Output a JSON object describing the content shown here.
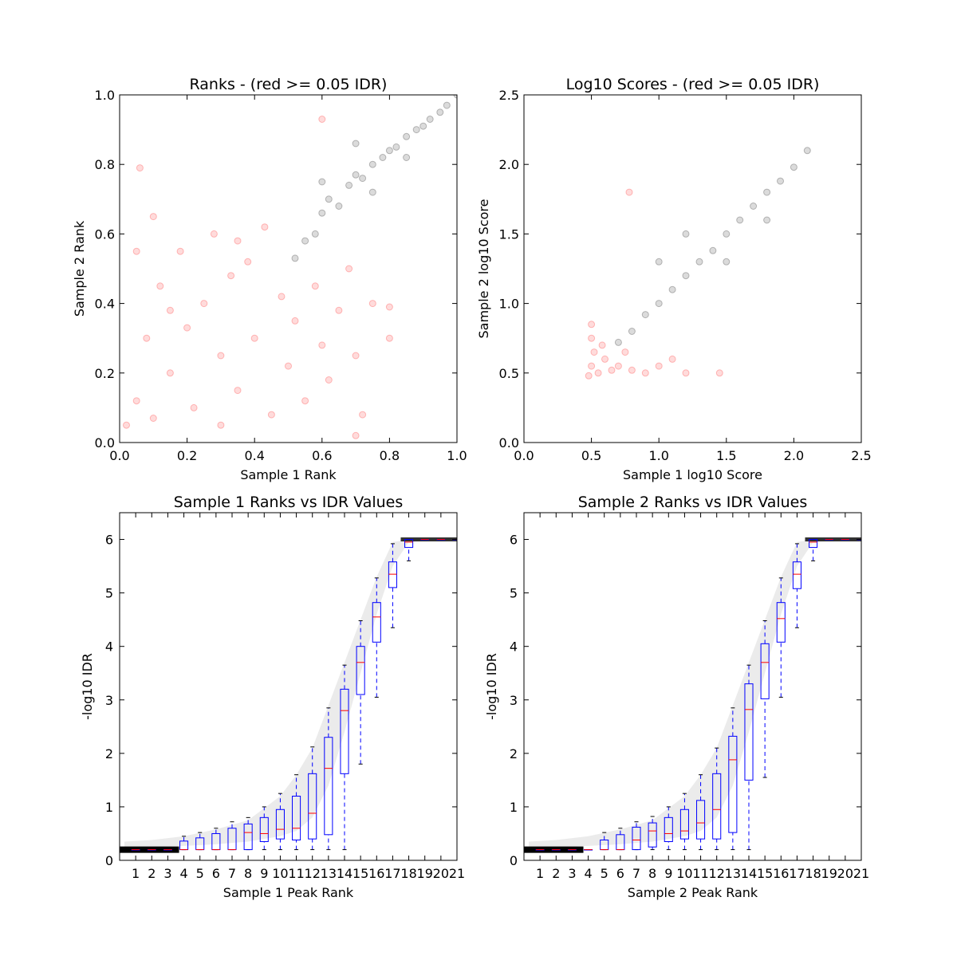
{
  "figure": {
    "background": "#ffffff",
    "colors": {
      "idr_fail": "#ff0000",
      "idr_pass": "#000000",
      "box": "#0000ff",
      "median": "#ff0000"
    }
  },
  "chart_data": [
    {
      "type": "scatter",
      "title": "Ranks - (red >= 0.05 IDR)",
      "xlabel": "Sample 1 Rank",
      "ylabel": "Sample 2 Rank",
      "xlim": [
        0.0,
        1.0
      ],
      "ylim": [
        0.0,
        1.0
      ],
      "xticks": [
        "0.0",
        "0.2",
        "0.4",
        "0.6",
        "0.8",
        "1.0"
      ],
      "yticks": [
        "0.0",
        "0.2",
        "0.4",
        "0.6",
        "0.8",
        "1.0"
      ],
      "series": [
        {
          "name": "IDR >= 0.05",
          "color": "#ff0000",
          "points": [
            [
              0.02,
              0.05
            ],
            [
              0.05,
              0.12
            ],
            [
              0.08,
              0.3
            ],
            [
              0.1,
              0.07
            ],
            [
              0.12,
              0.45
            ],
            [
              0.15,
              0.2
            ],
            [
              0.18,
              0.55
            ],
            [
              0.2,
              0.33
            ],
            [
              0.22,
              0.1
            ],
            [
              0.25,
              0.4
            ],
            [
              0.28,
              0.6
            ],
            [
              0.3,
              0.25
            ],
            [
              0.33,
              0.48
            ],
            [
              0.35,
              0.15
            ],
            [
              0.38,
              0.52
            ],
            [
              0.4,
              0.3
            ],
            [
              0.43,
              0.62
            ],
            [
              0.45,
              0.08
            ],
            [
              0.48,
              0.42
            ],
            [
              0.5,
              0.22
            ],
            [
              0.52,
              0.35
            ],
            [
              0.55,
              0.12
            ],
            [
              0.58,
              0.45
            ],
            [
              0.6,
              0.28
            ],
            [
              0.62,
              0.18
            ],
            [
              0.65,
              0.38
            ],
            [
              0.68,
              0.5
            ],
            [
              0.7,
              0.25
            ],
            [
              0.72,
              0.08
            ],
            [
              0.75,
              0.4
            ],
            [
              0.8,
              0.3
            ],
            [
              0.05,
              0.55
            ],
            [
              0.1,
              0.65
            ],
            [
              0.15,
              0.38
            ],
            [
              0.3,
              0.05
            ],
            [
              0.35,
              0.58
            ],
            [
              0.06,
              0.79
            ],
            [
              0.6,
              0.93
            ],
            [
              0.8,
              0.39
            ],
            [
              0.7,
              0.02
            ]
          ]
        },
        {
          "name": "IDR < 0.05",
          "color": "#000000",
          "points": [
            [
              0.52,
              0.53
            ],
            [
              0.55,
              0.58
            ],
            [
              0.58,
              0.6
            ],
            [
              0.6,
              0.66
            ],
            [
              0.62,
              0.7
            ],
            [
              0.65,
              0.68
            ],
            [
              0.68,
              0.74
            ],
            [
              0.7,
              0.77
            ],
            [
              0.72,
              0.76
            ],
            [
              0.75,
              0.8
            ],
            [
              0.78,
              0.82
            ],
            [
              0.8,
              0.84
            ],
            [
              0.82,
              0.85
            ],
            [
              0.85,
              0.88
            ],
            [
              0.88,
              0.9
            ],
            [
              0.9,
              0.91
            ],
            [
              0.92,
              0.93
            ],
            [
              0.95,
              0.95
            ],
            [
              0.97,
              0.97
            ],
            [
              1.0,
              1.0
            ],
            [
              0.6,
              0.75
            ],
            [
              0.7,
              0.86
            ],
            [
              0.75,
              0.72
            ],
            [
              0.85,
              0.82
            ]
          ]
        }
      ]
    },
    {
      "type": "scatter",
      "title": "Log10 Scores - (red >= 0.05 IDR)",
      "xlabel": "Sample 1 log10 Score",
      "ylabel": "Sample 2 log10 Score",
      "xlim": [
        0.0,
        2.5
      ],
      "ylim": [
        0.0,
        2.5
      ],
      "xticks": [
        "0.0",
        "0.5",
        "1.0",
        "1.5",
        "2.0",
        "2.5"
      ],
      "yticks": [
        "0.0",
        "0.5",
        "1.0",
        "1.5",
        "2.0",
        "2.5"
      ],
      "series": [
        {
          "name": "IDR >= 0.05",
          "color": "#ff0000",
          "points": [
            [
              0.48,
              0.48
            ],
            [
              0.5,
              0.55
            ],
            [
              0.55,
              0.5
            ],
            [
              0.52,
              0.65
            ],
            [
              0.6,
              0.6
            ],
            [
              0.65,
              0.52
            ],
            [
              0.5,
              0.75
            ],
            [
              0.7,
              0.55
            ],
            [
              0.58,
              0.7
            ],
            [
              0.8,
              0.52
            ],
            [
              0.9,
              0.5
            ],
            [
              0.5,
              0.85
            ],
            [
              0.75,
              0.65
            ],
            [
              1.0,
              0.55
            ],
            [
              1.1,
              0.6
            ],
            [
              1.2,
              0.5
            ],
            [
              0.78,
              1.8
            ],
            [
              1.45,
              0.5
            ]
          ]
        },
        {
          "name": "IDR < 0.05",
          "color": "#000000",
          "points": [
            [
              0.7,
              0.72
            ],
            [
              0.8,
              0.8
            ],
            [
              0.9,
              0.92
            ],
            [
              1.0,
              1.0
            ],
            [
              1.1,
              1.1
            ],
            [
              1.2,
              1.2
            ],
            [
              1.3,
              1.3
            ],
            [
              1.4,
              1.38
            ],
            [
              1.5,
              1.5
            ],
            [
              1.6,
              1.6
            ],
            [
              1.7,
              1.7
            ],
            [
              1.8,
              1.8
            ],
            [
              1.9,
              1.88
            ],
            [
              2.0,
              1.98
            ],
            [
              2.1,
              2.1
            ],
            [
              1.0,
              1.3
            ],
            [
              1.2,
              1.5
            ],
            [
              1.5,
              1.3
            ],
            [
              1.8,
              1.6
            ]
          ]
        }
      ]
    },
    {
      "type": "box",
      "title": "Sample 1 Ranks vs IDR Values",
      "xlabel": "Sample 1 Peak Rank",
      "ylabel": "-log10 IDR",
      "xlim": [
        0,
        21
      ],
      "ylim": [
        0,
        6.5
      ],
      "xticks": [
        "1",
        "2",
        "3",
        "4",
        "5",
        "6",
        "7",
        "8",
        "9",
        "10",
        "11",
        "12",
        "13",
        "14",
        "15",
        "16",
        "17",
        "18",
        "19",
        "20",
        "21"
      ],
      "yticks": [
        "0",
        "1",
        "2",
        "3",
        "4",
        "5",
        "6"
      ],
      "boxes": [
        {
          "pos": 1,
          "whislo": 0.2,
          "q1": 0.2,
          "med": 0.2,
          "q3": 0.2,
          "whishi": 0.2
        },
        {
          "pos": 2,
          "whislo": 0.2,
          "q1": 0.2,
          "med": 0.2,
          "q3": 0.2,
          "whishi": 0.2
        },
        {
          "pos": 3,
          "whislo": 0.2,
          "q1": 0.2,
          "med": 0.2,
          "q3": 0.2,
          "whishi": 0.2
        },
        {
          "pos": 4,
          "whislo": 0.2,
          "q1": 0.2,
          "med": 0.2,
          "q3": 0.36,
          "whishi": 0.45
        },
        {
          "pos": 5,
          "whislo": 0.2,
          "q1": 0.2,
          "med": 0.2,
          "q3": 0.42,
          "whishi": 0.52
        },
        {
          "pos": 6,
          "whislo": 0.2,
          "q1": 0.2,
          "med": 0.2,
          "q3": 0.5,
          "whishi": 0.6
        },
        {
          "pos": 7,
          "whislo": 0.2,
          "q1": 0.2,
          "med": 0.2,
          "q3": 0.6,
          "whishi": 0.72
        },
        {
          "pos": 8,
          "whislo": 0.2,
          "q1": 0.2,
          "med": 0.52,
          "q3": 0.68,
          "whishi": 0.8
        },
        {
          "pos": 9,
          "whislo": 0.2,
          "q1": 0.35,
          "med": 0.5,
          "q3": 0.8,
          "whishi": 1.0
        },
        {
          "pos": 10,
          "whislo": 0.2,
          "q1": 0.4,
          "med": 0.58,
          "q3": 0.95,
          "whishi": 1.25
        },
        {
          "pos": 11,
          "whislo": 0.2,
          "q1": 0.38,
          "med": 0.6,
          "q3": 1.2,
          "whishi": 1.6
        },
        {
          "pos": 12,
          "whislo": 0.2,
          "q1": 0.4,
          "med": 0.88,
          "q3": 1.62,
          "whishi": 2.12
        },
        {
          "pos": 13,
          "whislo": 0.2,
          "q1": 0.48,
          "med": 1.72,
          "q3": 2.3,
          "whishi": 2.85
        },
        {
          "pos": 14,
          "whislo": 0.2,
          "q1": 1.62,
          "med": 2.8,
          "q3": 3.2,
          "whishi": 3.65
        },
        {
          "pos": 15,
          "whislo": 1.8,
          "q1": 3.1,
          "med": 3.7,
          "q3": 4.0,
          "whishi": 4.48
        },
        {
          "pos": 16,
          "whislo": 3.05,
          "q1": 4.08,
          "med": 4.55,
          "q3": 4.82,
          "whishi": 5.28
        },
        {
          "pos": 17,
          "whislo": 4.35,
          "q1": 5.1,
          "med": 5.35,
          "q3": 5.58,
          "whishi": 5.92
        },
        {
          "pos": 18,
          "whislo": 5.6,
          "q1": 5.85,
          "med": 5.95,
          "q3": 6.0,
          "whishi": 6.0
        },
        {
          "pos": 19,
          "whislo": 6.0,
          "q1": 6.0,
          "med": 6.0,
          "q3": 6.0,
          "whishi": 6.0
        },
        {
          "pos": 20,
          "whislo": 6.0,
          "q1": 6.0,
          "med": 6.0,
          "q3": 6.0,
          "whishi": 6.0
        },
        {
          "pos": 21,
          "whislo": 6.0,
          "q1": 6.0,
          "med": 6.0,
          "q3": 6.0,
          "whishi": 6.0
        }
      ]
    },
    {
      "type": "box",
      "title": "Sample 2 Ranks vs IDR Values",
      "xlabel": "Sample 2 Peak Rank",
      "ylabel": "-log10 IDR",
      "xlim": [
        0,
        21
      ],
      "ylim": [
        0,
        6.5
      ],
      "xticks": [
        "1",
        "2",
        "3",
        "4",
        "5",
        "6",
        "7",
        "8",
        "9",
        "10",
        "11",
        "12",
        "13",
        "14",
        "15",
        "16",
        "17",
        "18",
        "19",
        "20",
        "21"
      ],
      "yticks": [
        "0",
        "1",
        "2",
        "3",
        "4",
        "5",
        "6"
      ],
      "boxes": [
        {
          "pos": 1,
          "whislo": 0.2,
          "q1": 0.2,
          "med": 0.2,
          "q3": 0.2,
          "whishi": 0.2
        },
        {
          "pos": 2,
          "whislo": 0.2,
          "q1": 0.2,
          "med": 0.2,
          "q3": 0.2,
          "whishi": 0.2
        },
        {
          "pos": 3,
          "whislo": 0.2,
          "q1": 0.2,
          "med": 0.2,
          "q3": 0.2,
          "whishi": 0.2
        },
        {
          "pos": 4,
          "whislo": 0.2,
          "q1": 0.2,
          "med": 0.2,
          "q3": 0.2,
          "whishi": 0.2
        },
        {
          "pos": 5,
          "whislo": 0.2,
          "q1": 0.2,
          "med": 0.2,
          "q3": 0.38,
          "whishi": 0.52
        },
        {
          "pos": 6,
          "whislo": 0.2,
          "q1": 0.2,
          "med": 0.2,
          "q3": 0.48,
          "whishi": 0.6
        },
        {
          "pos": 7,
          "whislo": 0.2,
          "q1": 0.2,
          "med": 0.38,
          "q3": 0.62,
          "whishi": 0.72
        },
        {
          "pos": 8,
          "whislo": 0.2,
          "q1": 0.25,
          "med": 0.55,
          "q3": 0.7,
          "whishi": 0.82
        },
        {
          "pos": 9,
          "whislo": 0.2,
          "q1": 0.35,
          "med": 0.5,
          "q3": 0.8,
          "whishi": 1.0
        },
        {
          "pos": 10,
          "whislo": 0.2,
          "q1": 0.4,
          "med": 0.55,
          "q3": 0.95,
          "whishi": 1.25
        },
        {
          "pos": 11,
          "whislo": 0.2,
          "q1": 0.4,
          "med": 0.7,
          "q3": 1.12,
          "whishi": 1.6
        },
        {
          "pos": 12,
          "whislo": 0.2,
          "q1": 0.4,
          "med": 0.95,
          "q3": 1.62,
          "whishi": 2.1
        },
        {
          "pos": 13,
          "whislo": 0.2,
          "q1": 0.52,
          "med": 1.88,
          "q3": 2.32,
          "whishi": 2.85
        },
        {
          "pos": 14,
          "whislo": 0.2,
          "q1": 1.5,
          "med": 2.82,
          "q3": 3.3,
          "whishi": 3.65
        },
        {
          "pos": 15,
          "whislo": 1.55,
          "q1": 3.02,
          "med": 3.7,
          "q3": 4.05,
          "whishi": 4.48
        },
        {
          "pos": 16,
          "whislo": 3.05,
          "q1": 4.08,
          "med": 4.52,
          "q3": 4.82,
          "whishi": 5.28
        },
        {
          "pos": 17,
          "whislo": 4.35,
          "q1": 5.08,
          "med": 5.35,
          "q3": 5.58,
          "whishi": 5.92
        },
        {
          "pos": 18,
          "whislo": 5.6,
          "q1": 5.85,
          "med": 5.95,
          "q3": 6.0,
          "whishi": 6.0
        },
        {
          "pos": 19,
          "whislo": 6.0,
          "q1": 6.0,
          "med": 6.0,
          "q3": 6.0,
          "whishi": 6.0
        },
        {
          "pos": 20,
          "whislo": 6.0,
          "q1": 6.0,
          "med": 6.0,
          "q3": 6.0,
          "whishi": 6.0
        },
        {
          "pos": 21,
          "whislo": 6.0,
          "q1": 6.0,
          "med": 6.0,
          "q3": 6.0,
          "whishi": 6.0
        }
      ]
    }
  ]
}
